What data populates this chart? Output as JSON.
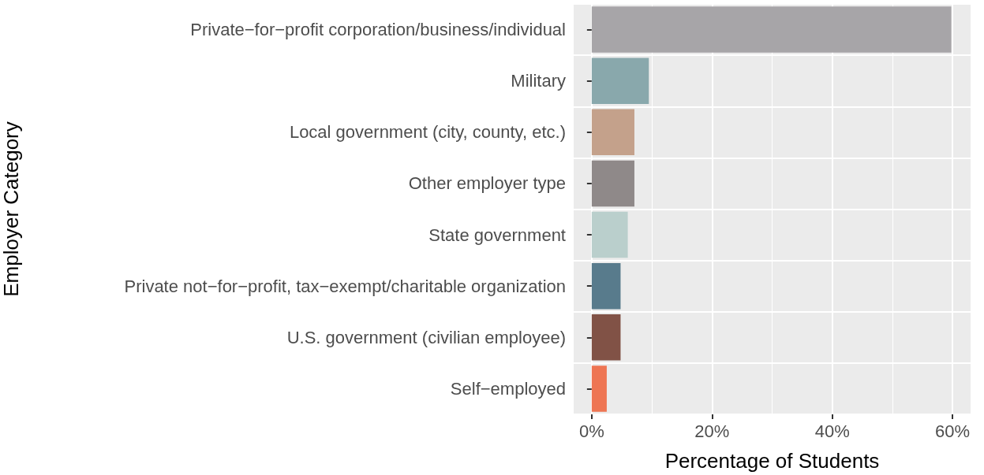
{
  "chart_data": {
    "type": "bar",
    "orientation": "horizontal",
    "xlabel": "Percentage of Students",
    "ylabel": "Employer Category",
    "categories": [
      "Private−for−profit corporation/business/individual",
      "Military",
      "Local government (city, county, etc.)",
      "Other employer type",
      "State government",
      "Private not−for−profit, tax−exempt/charitable organization",
      "U.S. government (civilian employee)",
      "Self−employed"
    ],
    "values": [
      59.8,
      9.5,
      7.1,
      7.1,
      6.0,
      4.8,
      4.8,
      2.5
    ],
    "colors": [
      "#a7a5a8",
      "#89a8ac",
      "#c4a18b",
      "#8f8989",
      "#bacfcc",
      "#587b8c",
      "#815246",
      "#ee7553"
    ],
    "xlim": [
      -3,
      63
    ],
    "xticks": [
      {
        "value": 0,
        "label": "0%"
      },
      {
        "value": 20,
        "label": "20%"
      },
      {
        "value": 40,
        "label": "40%"
      },
      {
        "value": 60,
        "label": "60%"
      }
    ],
    "grid": true
  }
}
